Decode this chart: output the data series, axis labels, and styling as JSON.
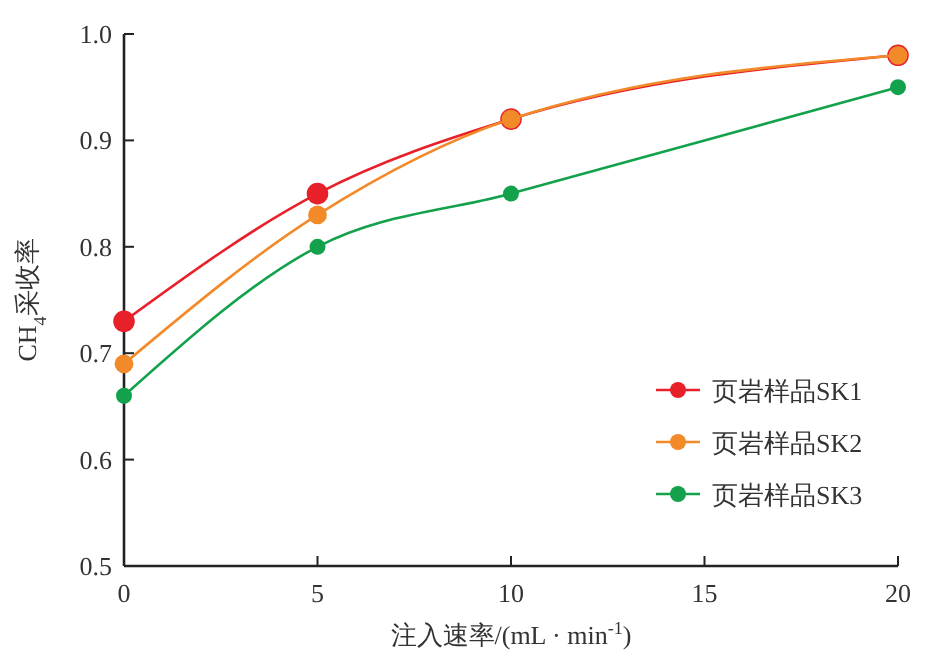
{
  "chart_data": {
    "type": "line",
    "xlabel": "注入速率/(mL · min$^{-1}$)",
    "ylabel": "CH$_{4}$采收率",
    "x": [
      0,
      5,
      10,
      20
    ],
    "xlim": [
      0,
      20
    ],
    "xticks": [
      0,
      5,
      10,
      15,
      20
    ],
    "ylim": [
      0.5,
      1.0
    ],
    "yticks": [
      {
        "value": 0.5,
        "label": "0.5"
      },
      {
        "value": 0.6,
        "label": "0.6"
      },
      {
        "value": 0.7,
        "label": "0.7"
      },
      {
        "value": 0.8,
        "label": "0.8"
      },
      {
        "value": 0.9,
        "label": "0.9"
      },
      {
        "value": 1.0,
        "label": "1.0"
      }
    ],
    "grid": false,
    "legend": "right",
    "marker": "circle",
    "line_style": "solid",
    "series": [
      {
        "name": "页岩样品SK1",
        "color": "#e8202a",
        "values": [
          0.73,
          0.85,
          0.92,
          0.98
        ]
      },
      {
        "name": "页岩样品SK2",
        "color": "#f28a2a",
        "values": [
          0.69,
          0.83,
          0.92,
          0.98
        ]
      },
      {
        "name": "页岩样品SK3",
        "color": "#13a24b",
        "values": [
          0.66,
          0.8,
          0.85,
          0.95
        ]
      }
    ]
  }
}
